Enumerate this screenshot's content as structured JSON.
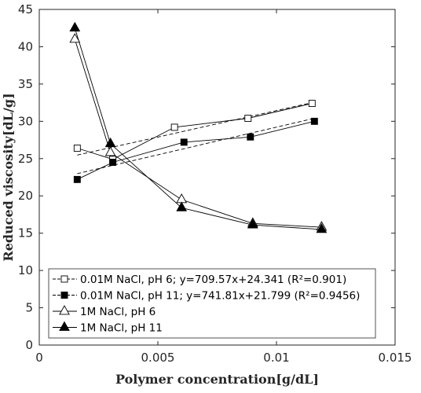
{
  "chart_data": {
    "type": "scatter",
    "title": "",
    "xlabel": "Polymer concentration[g/dL]",
    "ylabel": "Reduced viscosity[dL/g]",
    "xlim": [
      0,
      0.015
    ],
    "ylim": [
      0,
      45
    ],
    "xticks": [
      0,
      0.005,
      0.01,
      0.015
    ],
    "xtick_labels": [
      "0",
      "0.005",
      "0.01",
      "0.015"
    ],
    "yticks": [
      0,
      5,
      10,
      15,
      20,
      25,
      30,
      35,
      40,
      45
    ],
    "ytick_labels": [
      "0",
      "5",
      "10",
      "15",
      "20",
      "25",
      "30",
      "35",
      "40",
      "45"
    ],
    "grid": false,
    "legend_position": "bottom-left",
    "series": [
      {
        "name": "0.01M NaCl, pH 6; y=709.57x+24.341 (R²=0.901)",
        "marker": "square-open",
        "x": [
          0.0016,
          0.0031,
          0.0057,
          0.0088,
          0.0115
        ],
        "y": [
          26.4,
          24.9,
          29.2,
          30.4,
          32.4
        ],
        "fit": {
          "slope": 709.57,
          "intercept": 24.341
        }
      },
      {
        "name": "0.01M NaCl, pH 11; y=741.81x+21.799 (R²=0.9456)",
        "marker": "square-filled",
        "x": [
          0.0016,
          0.0031,
          0.0061,
          0.0089,
          0.0116
        ],
        "y": [
          22.2,
          24.5,
          27.2,
          27.9,
          30.0
        ],
        "fit": {
          "slope": 741.81,
          "intercept": 21.799
        }
      },
      {
        "name": "1M NaCl, pH 6",
        "marker": "triangle-open",
        "x": [
          0.0015,
          0.003,
          0.006,
          0.009,
          0.0119
        ],
        "y": [
          41.0,
          25.8,
          19.5,
          16.3,
          15.8
        ]
      },
      {
        "name": "1M NaCl, pH 11",
        "marker": "triangle-filled",
        "x": [
          0.0015,
          0.003,
          0.006,
          0.009,
          0.0119
        ],
        "y": [
          42.5,
          27.0,
          18.4,
          16.1,
          15.5
        ]
      }
    ]
  }
}
